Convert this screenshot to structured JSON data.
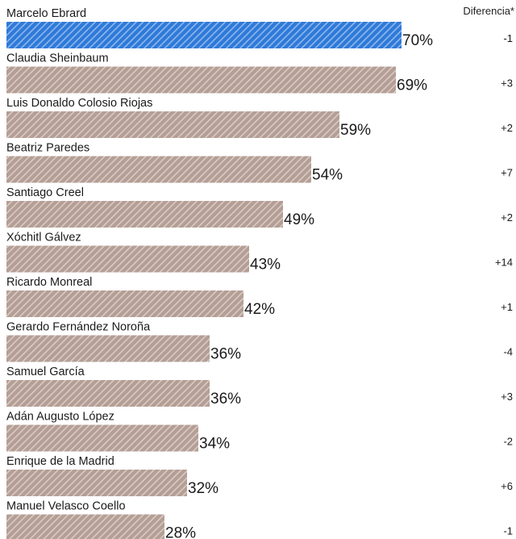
{
  "header": {
    "diff_label": "Diferencia*"
  },
  "colors": {
    "highlight_bar": "#2f7ad9",
    "highlight_hatch": "#8fb8ec",
    "default_bar": "#b49e95",
    "default_hatch": "#d9cbc4",
    "text": "#1a1a1a"
  },
  "chart_data": {
    "type": "bar",
    "orientation": "horizontal",
    "categories": [
      "Marcelo Ebrard",
      "Claudia Sheinbaum",
      "Luis Donaldo Colosio Riojas",
      "Beatriz Paredes",
      "Santiago Creel",
      "Xóchitl Gálvez",
      "Ricardo Monreal",
      "Gerardo Fernández Noroña",
      "Samuel García",
      "Adán Augusto López",
      "Enrique de la Madrid",
      "Manuel Velasco Coello"
    ],
    "values": [
      70,
      69,
      59,
      54,
      49,
      43,
      42,
      36,
      36,
      34,
      32,
      28
    ],
    "value_labels": [
      "70%",
      "69%",
      "59%",
      "54%",
      "49%",
      "43%",
      "42%",
      "36%",
      "36%",
      "34%",
      "32%",
      "28%"
    ],
    "differences": [
      "-1",
      "+3",
      "+2",
      "+7",
      "+2",
      "+14",
      "+1",
      "-4",
      "+3",
      "-2",
      "+6",
      "-1"
    ],
    "highlight_index": 0,
    "xlim": [
      0,
      100
    ],
    "title": "",
    "xlabel": "",
    "ylabel": ""
  }
}
